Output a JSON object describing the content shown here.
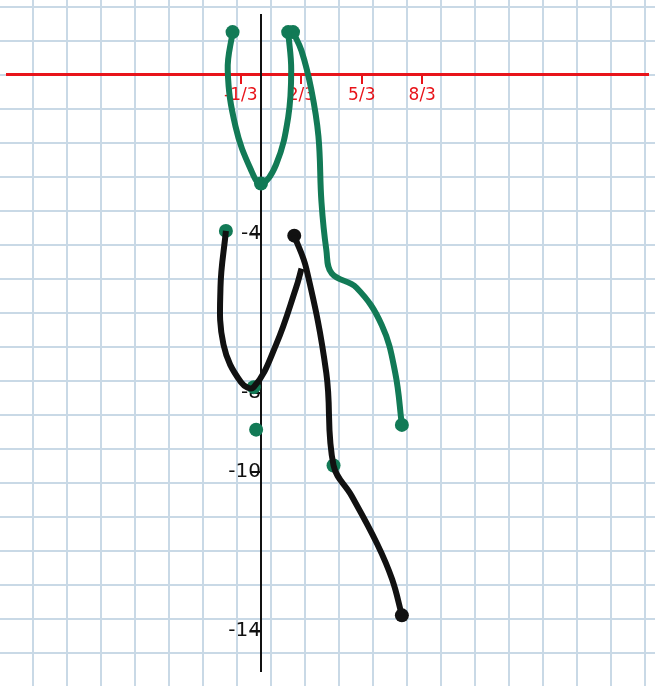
{
  "chart_data": {
    "type": "line",
    "xlim": [
      -4.2,
      6.4
    ],
    "ylim": [
      -15,
      1.5
    ],
    "xticks": [
      {
        "value": -0.333,
        "label": "-1/3"
      },
      {
        "value": 0.667,
        "label": "2/3"
      },
      {
        "value": 1.667,
        "label": "5/3"
      },
      {
        "value": 2.667,
        "label": "8/3"
      }
    ],
    "yticks": [
      -4,
      -8,
      -10,
      -14
    ],
    "grid": true,
    "series": [
      {
        "color": "#127a56",
        "line_style": "solid",
        "marker": "none",
        "x": [
          -0.47,
          -0.55,
          -0.42,
          -0.17,
          0,
          0.25,
          0.45,
          0.5,
          0.45
        ],
        "values": [
          1.07,
          0.12,
          -1.31,
          -2.38,
          -2.74,
          -2.26,
          -1.07,
          0.12,
          1.07
        ]
      },
      {
        "color": "#127a56",
        "line_style": "solid",
        "marker": "none",
        "x": [
          0.53,
          0.67,
          0.83,
          0.95,
          1.0,
          1.08,
          1.17,
          1.58,
          2.0,
          2.22,
          2.33
        ],
        "values": [
          1.07,
          0.6,
          -0.36,
          -1.55,
          -3.2,
          -4.4,
          -5.0,
          -5.36,
          -6.31,
          -7.5,
          -8.81
        ]
      },
      {
        "color": "#111111",
        "line_style": "solid",
        "marker": "none",
        "x": [
          -0.58,
          -0.67,
          -0.62,
          -0.33,
          -0.12,
          0.25,
          0.58,
          0.67
        ],
        "values": [
          -3.93,
          -5.36,
          -6.79,
          -7.74,
          -7.86,
          -6.79,
          -5.36,
          -4.88
        ]
      },
      {
        "color": "#111111",
        "line_style": "solid",
        "marker": "none",
        "x": [
          0.55,
          0.75,
          1.08,
          1.2,
          1.5,
          1.92,
          2.17,
          2.33
        ],
        "values": [
          -4.05,
          -4.88,
          -7.5,
          -9.83,
          -10.6,
          -11.8,
          -12.7,
          -13.6
        ]
      },
      {
        "type": "scatter",
        "color": "#127a56",
        "line_style": "none",
        "marker": "circle",
        "x": [
          -0.47,
          0.45,
          0.53,
          0,
          2.33,
          -0.08,
          -0.58,
          -0.12,
          1.2
        ],
        "values": [
          1.07,
          1.07,
          1.07,
          -2.74,
          -8.81,
          -8.93,
          -3.93,
          -7.86,
          -9.83
        ]
      },
      {
        "type": "scatter",
        "color": "#111111",
        "line_style": "none",
        "marker": "circle",
        "x": [
          0.55,
          2.33
        ],
        "values": [
          -4.05,
          -13.6
        ]
      }
    ]
  }
}
